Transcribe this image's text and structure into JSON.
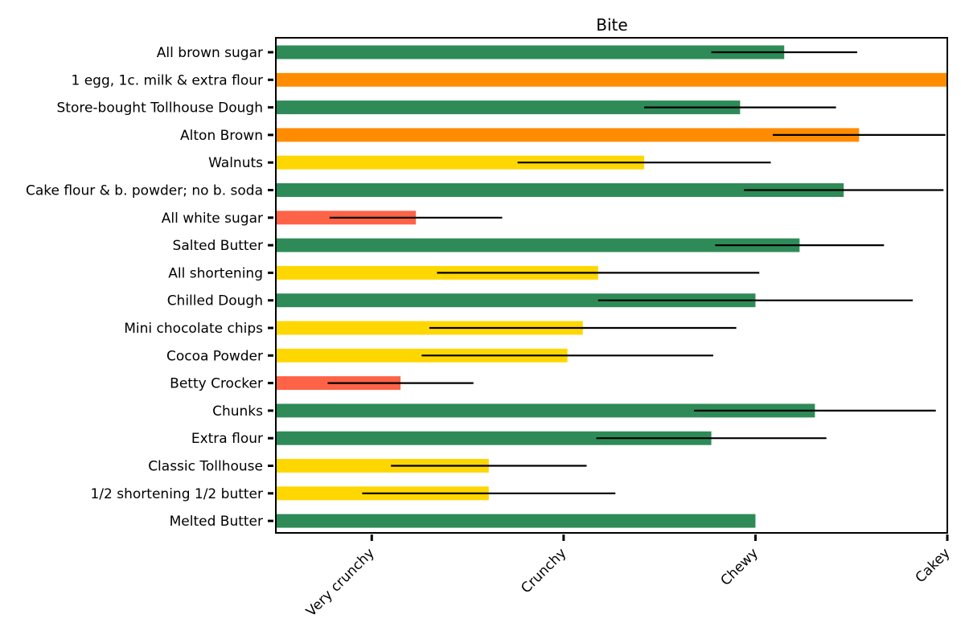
{
  "chart_data": {
    "type": "bar",
    "orientation": "horizontal",
    "title": "Bite",
    "xlabel": "",
    "ylabel": "",
    "x_ticks": [
      {
        "value": 1,
        "label": "Very crunchy"
      },
      {
        "value": 2,
        "label": "Crunchy"
      },
      {
        "value": 3,
        "label": "Chewy"
      },
      {
        "value": 4,
        "label": "Cakey"
      }
    ],
    "xlim": [
      0.5,
      4.0
    ],
    "grid": false,
    "categories": [
      "All brown sugar",
      "1 egg, 1c. milk & extra flour",
      "Store-bought Tollhouse Dough",
      "Alton Brown",
      "Walnuts",
      "Cake flour & b. powder; no b. soda",
      "All white sugar",
      "Salted Butter",
      "All shortening",
      "Chilled Dough",
      "Mini chocolate chips",
      "Cocoa Powder",
      "Betty Crocker",
      "Chunks",
      "Extra flour",
      "Classic Tollhouse",
      "1/2 shortening 1/2 butter",
      "Melted Butter"
    ],
    "values": [
      3.15,
      4.0,
      2.92,
      3.54,
      2.42,
      3.46,
      1.23,
      3.23,
      2.18,
      3.0,
      2.1,
      2.02,
      1.15,
      3.31,
      2.77,
      1.61,
      1.61,
      3.0
    ],
    "errors": [
      0.38,
      0.0,
      0.5,
      0.45,
      0.66,
      0.52,
      0.45,
      0.44,
      0.84,
      0.82,
      0.8,
      0.76,
      0.38,
      0.63,
      0.6,
      0.51,
      0.66,
      0.0
    ],
    "bar_colors": [
      "#2e8b57",
      "#ff8c00",
      "#2e8b57",
      "#ff8c00",
      "#ffd700",
      "#2e8b57",
      "#ff6347",
      "#2e8b57",
      "#ffd700",
      "#2e8b57",
      "#ffd700",
      "#ffd700",
      "#ff6347",
      "#2e8b57",
      "#2e8b57",
      "#ffd700",
      "#ffd700",
      "#2e8b57"
    ],
    "errorbar_color": "#000000"
  }
}
